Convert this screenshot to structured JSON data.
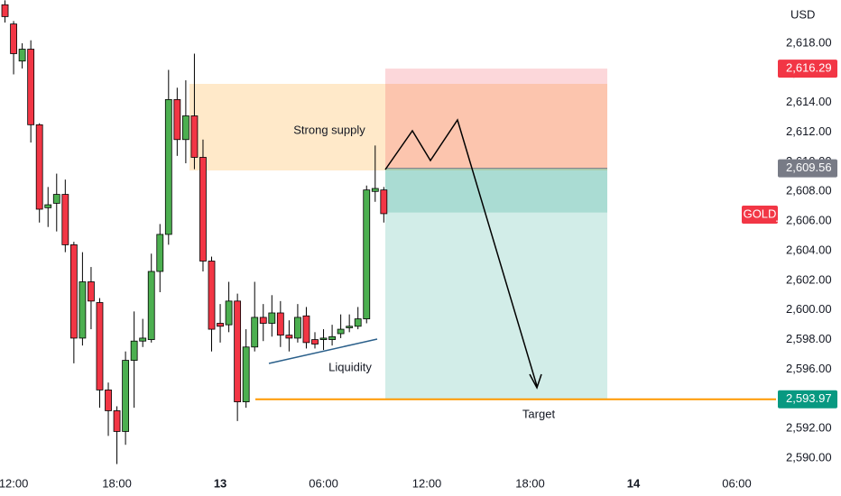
{
  "chart_data": {
    "type": "candlestick",
    "symbol": "GOLD",
    "currency": "USD",
    "x": [
      11.5,
      12,
      12.5,
      13,
      13.5,
      14,
      14.5,
      15,
      15.5,
      16,
      16.5,
      17,
      17.5,
      18,
      18.5,
      19,
      19.5,
      20,
      20.5,
      21,
      21.5,
      22,
      22.5,
      23,
      23.5,
      24,
      24.5,
      25,
      25.5,
      26,
      26.5,
      27,
      27.5,
      28,
      28.5,
      29,
      29.5,
      30,
      30.5,
      31,
      31.5,
      32,
      32.5,
      33,
      33.5
    ],
    "open": [
      2620.6,
      2619.3,
      2616.8,
      2617.6,
      2612.5,
      2606.9,
      2607.2,
      2607.8,
      2604.4,
      2598.1,
      2601.9,
      2600.5,
      2594.6,
      2593.2,
      2591.8,
      2596.6,
      2597.9,
      2598.0,
      2602.6,
      2605.1,
      2614.2,
      2611.5,
      2613.1,
      2610.3,
      2603.3,
      2599.1,
      2599.0,
      2600.6,
      2593.8,
      2597.5,
      2599.5,
      2599.1,
      2599.8,
      2598.3,
      2598.1,
      2599.6,
      2598.0,
      2598.0,
      2598.0,
      2598.4,
      2598.8,
      2598.9,
      2599.4,
      2608.0,
      2608.1
    ],
    "high": [
      2620.9,
      2619.5,
      2618.0,
      2618.2,
      2612.6,
      2608.3,
      2609.2,
      2608.8,
      2604.6,
      2603.9,
      2602.9,
      2600.8,
      2595.1,
      2593.5,
      2597.2,
      2599.9,
      2599.4,
      2603.8,
      2605.8,
      2616.2,
      2615.0,
      2615.5,
      2617.3,
      2611.5,
      2603.6,
      2600.4,
      2601.9,
      2601.1,
      2598.7,
      2601.9,
      2600.4,
      2601.0,
      2600.6,
      2599.3,
      2600.4,
      2600.2,
      2598.5,
      2598.7,
      2599.0,
      2599.7,
      2599.7,
      2600.2,
      2608.4,
      2611.1,
      2608.3
    ],
    "low": [
      2619.4,
      2615.9,
      2616.3,
      2611.3,
      2605.9,
      2605.6,
      2605.3,
      2603.9,
      2596.4,
      2597.6,
      2598.7,
      2593.4,
      2591.5,
      2589.6,
      2590.9,
      2593.4,
      2597.5,
      2597.8,
      2601.2,
      2604.4,
      2610.4,
      2609.9,
      2609.5,
      2602.6,
      2597.2,
      2597.8,
      2598.5,
      2592.5,
      2593.4,
      2597.2,
      2597.9,
      2598.2,
      2597.5,
      2597.2,
      2597.8,
      2597.4,
      2597.4,
      2597.3,
      2597.6,
      2598.1,
      2598.5,
      2598.7,
      2599.1,
      2607.3,
      2605.9
    ],
    "close": [
      2619.8,
      2617.3,
      2617.6,
      2612.5,
      2606.8,
      2607.1,
      2607.8,
      2604.4,
      2598.1,
      2601.9,
      2600.6,
      2594.6,
      2593.2,
      2591.8,
      2596.6,
      2597.9,
      2598.1,
      2602.6,
      2605.1,
      2614.2,
      2611.5,
      2613.1,
      2610.3,
      2603.3,
      2598.7,
      2598.9,
      2600.6,
      2593.8,
      2597.5,
      2599.5,
      2599.1,
      2599.8,
      2598.3,
      2598.1,
      2599.5,
      2597.8,
      2597.7,
      2598.1,
      2598.2,
      2598.7,
      2598.9,
      2599.4,
      2608.1,
      2608.2,
      2606.5
    ],
    "up_color": "#4caf50",
    "down_color": "#f23645",
    "xlim": [
      11.21,
      56.28
    ],
    "ylim": [
      2589.27,
      2620.92
    ],
    "xticks": [
      {
        "value": 12,
        "label": "12:00"
      },
      {
        "value": 18,
        "label": "18:00"
      },
      {
        "value": 24,
        "label": "13"
      },
      {
        "value": 30,
        "label": "06:00"
      },
      {
        "value": 36,
        "label": "12:00"
      },
      {
        "value": 42,
        "label": "18:00"
      },
      {
        "value": 48,
        "label": "14"
      },
      {
        "value": 54,
        "label": "06:00"
      }
    ],
    "yticks": [
      {
        "value": 2590,
        "label": "2,590.00"
      },
      {
        "value": 2592,
        "label": "2,592.00"
      },
      {
        "value": 2594,
        "label": "2,594.00"
      },
      {
        "value": 2596,
        "label": "2,596.00"
      },
      {
        "value": 2598,
        "label": "2,598.00"
      },
      {
        "value": 2600,
        "label": "2,600.00"
      },
      {
        "value": 2602,
        "label": "2,602.00"
      },
      {
        "value": 2604,
        "label": "2,604.00"
      },
      {
        "value": 2606,
        "label": "2,606.00"
      },
      {
        "value": 2608,
        "label": "2,608.00"
      },
      {
        "value": 2610,
        "label": "2,610.00"
      },
      {
        "value": 2612,
        "label": "2,612.00"
      },
      {
        "value": 2614,
        "label": "2,614.00"
      },
      {
        "value": 2616,
        "label": "2,616.00"
      },
      {
        "value": 2618,
        "label": "2,618.00"
      }
    ],
    "price_labels": [
      {
        "value": 2616.29,
        "label": "2,616.29",
        "color": "#f23645"
      },
      {
        "value": 2609.56,
        "label": "2,609.56",
        "color": "#787b86"
      },
      {
        "value": 2593.97,
        "label": "2,593.97",
        "color": "#089981"
      }
    ],
    "annotations": [
      "Strong supply",
      "Liquidity",
      "Target"
    ]
  }
}
